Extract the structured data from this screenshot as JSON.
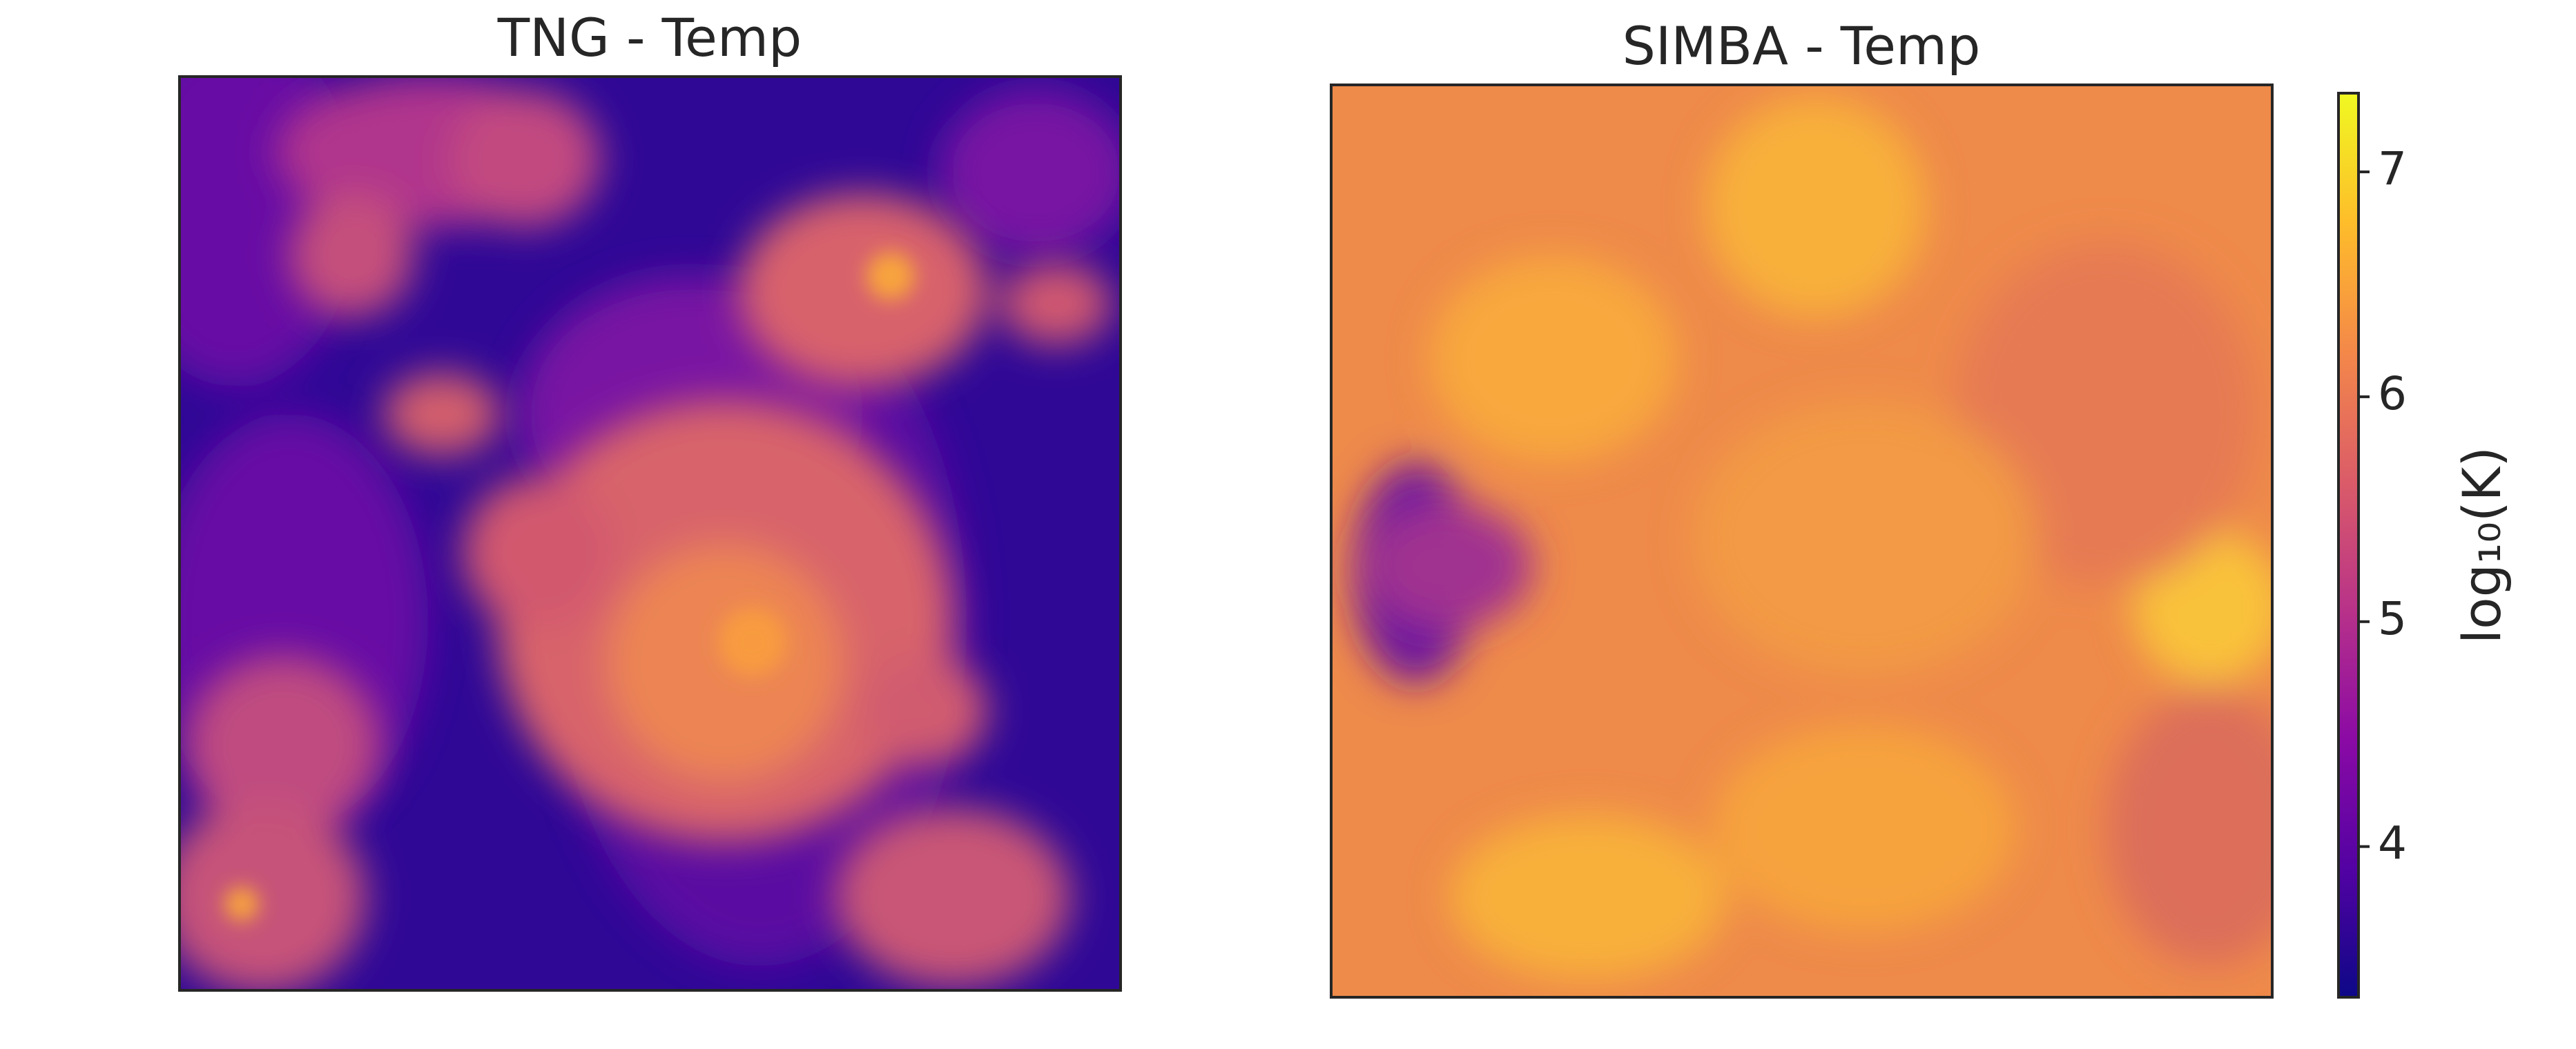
{
  "chart_data": [
    {
      "type": "image",
      "title": "TNG - Temp",
      "colormap": "plasma"
    },
    {
      "type": "image",
      "title": "SIMBA - Temp",
      "colormap": "plasma"
    },
    {
      "type": "colorbar",
      "label": "log₁₀(K)",
      "colormap": "plasma",
      "ylim": [
        3.33,
        7.35
      ],
      "yticks": [
        4,
        5,
        6,
        7
      ]
    }
  ]
}
